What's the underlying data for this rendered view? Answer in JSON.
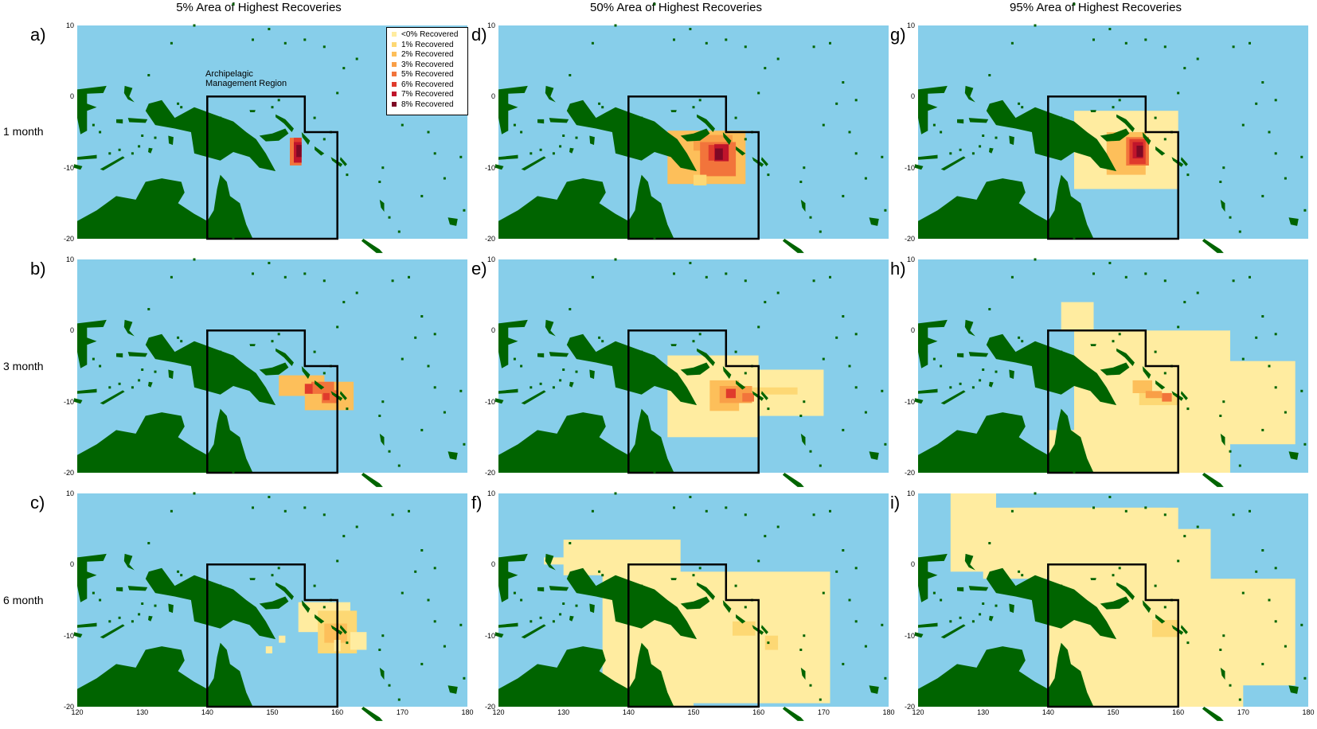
{
  "column_titles": [
    "5% Area of Highest Recoveries",
    "50% Area of Highest Recoveries",
    "95% Area of Highest Recoveries"
  ],
  "row_labels": [
    "1 month",
    "3 month",
    "6 month"
  ],
  "panel_labels": [
    "a)",
    "b)",
    "c)",
    "d)",
    "e)",
    "f)",
    "g)",
    "h)",
    "i)"
  ],
  "axes": {
    "lon_range": [
      120,
      180
    ],
    "lat_range": [
      -20,
      10
    ],
    "x_ticks": [
      120,
      130,
      140,
      150,
      160,
      170,
      180
    ],
    "y_ticks": [
      10,
      0,
      -10,
      -20
    ],
    "x_tick_labels": [
      "120",
      "130",
      "140",
      "150",
      "160",
      "170",
      "180"
    ],
    "y_tick_labels": [
      "10",
      "0",
      "-10",
      "-20"
    ]
  },
  "region": {
    "label_line1": "Archipelagic",
    "label_line2": "Management Region",
    "outline_lonlat": [
      [
        140,
        0
      ],
      [
        155,
        0
      ],
      [
        155,
        -5
      ],
      [
        160,
        -5
      ],
      [
        160,
        -20
      ],
      [
        140,
        -20
      ]
    ]
  },
  "legend": {
    "items": [
      {
        "label": "<0% Recovered",
        "color": "#ffeca0"
      },
      {
        "label": "1% Recovered",
        "color": "#fdd874"
      },
      {
        "label": "2% Recovered",
        "color": "#fdbf5a"
      },
      {
        "label": "3% Recovered",
        "color": "#f99f47"
      },
      {
        "label": "5% Recovered",
        "color": "#f2743b"
      },
      {
        "label": "6% Recovered",
        "color": "#e03b2c"
      },
      {
        "label": "7% Recovered",
        "color": "#c0142b"
      },
      {
        "label": "8% Recovered",
        "color": "#7e0825"
      }
    ]
  },
  "colors": {
    "ocean": "#87ceea",
    "land": "#006400",
    "region_outline": "#000000"
  }
}
